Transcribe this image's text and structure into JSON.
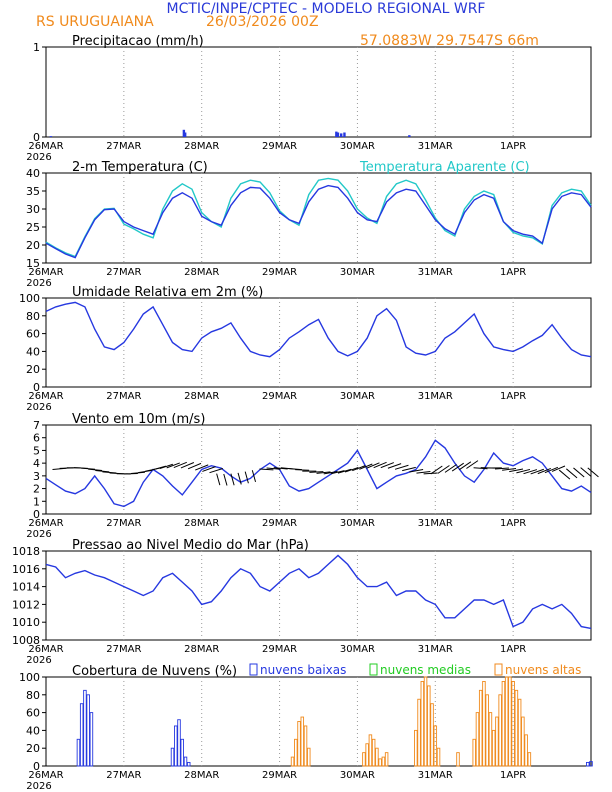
{
  "header": {
    "title": "MCTIC/INPE/CPTEC - MODELO REGIONAL WRF",
    "station": "RS URUGUAIANA",
    "run": "26/03/2026 00Z",
    "coords": "57.0883W 29.7547S 66m"
  },
  "colors": {
    "title": "#2a3ad8",
    "orange": "#f08a1c",
    "cyan": "#22c8c8",
    "blue": "#2638e0",
    "green": "#22cc22",
    "grid": "#9a9a9a"
  },
  "x_axis": {
    "ticks": [
      {
        "t": 0,
        "label": "26MAR",
        "year": "2026"
      },
      {
        "t": 24,
        "label": "27MAR"
      },
      {
        "t": 48,
        "label": "28MAR"
      },
      {
        "t": 72,
        "label": "29MAR"
      },
      {
        "t": 96,
        "label": "30MAR"
      },
      {
        "t": 120,
        "label": "31MAR"
      },
      {
        "t": 144,
        "label": "1APR"
      }
    ],
    "range": [
      0,
      168
    ]
  },
  "chart_data": [
    {
      "id": "precip",
      "type": "bar",
      "title": "Precipitacao (mm/h)",
      "ylim": [
        0,
        1
      ],
      "yticks": [
        0,
        1
      ],
      "x": [
        1.5,
        42.5,
        42.9,
        89.5,
        90.0,
        91.0,
        92.0,
        112.0
      ],
      "values": [
        0.01,
        0.08,
        0.05,
        0.06,
        0.05,
        0.04,
        0.05,
        0.02
      ]
    },
    {
      "id": "temp",
      "type": "line",
      "title": "2-m Temperatura (C)",
      "legend": "Temperatura Aparente (C)",
      "ylim": [
        15,
        40
      ],
      "yticks": [
        15,
        20,
        25,
        30,
        35,
        40
      ],
      "x": [
        0,
        3,
        6,
        9,
        12,
        15,
        18,
        21,
        24,
        27,
        30,
        33,
        36,
        39,
        42,
        45,
        48,
        51,
        54,
        57,
        60,
        63,
        66,
        69,
        72,
        75,
        78,
        81,
        84,
        87,
        90,
        93,
        96,
        99,
        102,
        105,
        108,
        111,
        114,
        117,
        120,
        123,
        126,
        129,
        132,
        135,
        138,
        141,
        144,
        147,
        150,
        153,
        156,
        159,
        162,
        165,
        168
      ],
      "series": [
        {
          "name": "2-m Temperatura (C)",
          "color": "#2638e0",
          "values": [
            20.5,
            19.0,
            17.5,
            16.5,
            22.0,
            27.0,
            29.8,
            30.0,
            26.5,
            25.0,
            24.0,
            23.0,
            29.0,
            33.0,
            34.5,
            33.0,
            28.0,
            26.5,
            25.5,
            31.0,
            34.5,
            36.0,
            35.8,
            33.0,
            29.0,
            27.0,
            26.0,
            32.0,
            35.5,
            36.5,
            36.0,
            33.0,
            29.0,
            27.0,
            26.5,
            32.0,
            34.5,
            35.5,
            35.0,
            31.0,
            27.0,
            24.5,
            23.0,
            29.0,
            32.5,
            34.0,
            33.0,
            26.5,
            24.0,
            23.0,
            22.5,
            20.5,
            30.0,
            33.5,
            34.5,
            34.0,
            30.5
          ]
        },
        {
          "name": "Temperatura Aparente (C)",
          "color": "#22c8c8",
          "values": [
            20.8,
            19.2,
            17.8,
            16.8,
            22.3,
            27.3,
            30.0,
            30.2,
            25.8,
            24.5,
            23.0,
            22.0,
            30.0,
            35.0,
            37.0,
            35.5,
            29.0,
            26.5,
            25.0,
            33.0,
            37.0,
            38.0,
            37.5,
            34.5,
            29.5,
            27.0,
            25.5,
            34.0,
            38.0,
            38.5,
            38.0,
            35.0,
            30.0,
            27.5,
            26.0,
            33.5,
            37.0,
            38.0,
            37.0,
            32.5,
            27.5,
            24.0,
            22.5,
            30.0,
            33.5,
            35.0,
            34.0,
            26.5,
            23.5,
            22.5,
            22.0,
            20.3,
            31.0,
            34.5,
            35.5,
            35.0,
            31.0
          ]
        }
      ]
    },
    {
      "id": "rh",
      "type": "line",
      "title": "Umidade Relativa em 2m (%)",
      "ylim": [
        0,
        100
      ],
      "yticks": [
        0,
        20,
        40,
        60,
        80,
        100
      ],
      "x": [
        0,
        3,
        6,
        9,
        12,
        15,
        18,
        21,
        24,
        27,
        30,
        33,
        36,
        39,
        42,
        45,
        48,
        51,
        54,
        57,
        60,
        63,
        66,
        69,
        72,
        75,
        78,
        81,
        84,
        87,
        90,
        93,
        96,
        99,
        102,
        105,
        108,
        111,
        114,
        117,
        120,
        123,
        126,
        129,
        132,
        135,
        138,
        141,
        144,
        147,
        150,
        153,
        156,
        159,
        162,
        165,
        168
      ],
      "series": [
        {
          "name": "Umidade Relativa",
          "color": "#2638e0",
          "values": [
            85,
            90,
            93,
            95,
            90,
            65,
            45,
            42,
            50,
            65,
            82,
            90,
            70,
            50,
            42,
            40,
            55,
            62,
            66,
            72,
            55,
            40,
            36,
            34,
            42,
            55,
            62,
            70,
            76,
            55,
            40,
            35,
            40,
            55,
            80,
            88,
            75,
            45,
            38,
            36,
            40,
            55,
            62,
            72,
            82,
            60,
            45,
            42,
            40,
            45,
            52,
            58,
            70,
            55,
            42,
            36,
            34
          ]
        }
      ]
    },
    {
      "id": "wind",
      "type": "line",
      "title": "Vento em 10m (m/s)",
      "ylim": [
        0,
        7
      ],
      "yticks": [
        0,
        1,
        2,
        3,
        4,
        5,
        6,
        7
      ],
      "x": [
        0,
        3,
        6,
        9,
        12,
        15,
        18,
        21,
        24,
        27,
        30,
        33,
        36,
        39,
        42,
        45,
        48,
        51,
        54,
        57,
        60,
        63,
        66,
        69,
        72,
        75,
        78,
        81,
        84,
        87,
        90,
        93,
        96,
        99,
        102,
        105,
        108,
        111,
        114,
        117,
        120,
        123,
        126,
        129,
        132,
        135,
        138,
        141,
        144,
        147,
        150,
        153,
        156,
        159,
        162,
        165,
        168
      ],
      "series": [
        {
          "name": "Vento 10m",
          "color": "#2638e0",
          "values": [
            2.8,
            2.3,
            1.8,
            1.6,
            2.0,
            3.0,
            2.0,
            0.8,
            0.6,
            1.0,
            2.5,
            3.5,
            3.0,
            2.2,
            1.5,
            2.5,
            3.5,
            3.8,
            3.6,
            3.0,
            2.5,
            2.8,
            3.5,
            4.0,
            3.5,
            2.2,
            1.8,
            2.0,
            2.5,
            3.0,
            3.5,
            4.0,
            5.0,
            3.5,
            2.0,
            2.5,
            3.0,
            3.2,
            3.5,
            4.5,
            5.8,
            5.2,
            4.0,
            3.0,
            2.5,
            3.5,
            4.8,
            4.0,
            3.8,
            4.2,
            4.5,
            4.0,
            3.0,
            2.0,
            1.8,
            2.2,
            1.7
          ]
        }
      ]
    },
    {
      "id": "slp",
      "type": "line",
      "title": "Pressao ao Nivel Medio do Mar (hPa)",
      "ylim": [
        1008,
        1018
      ],
      "yticks": [
        1008,
        1010,
        1012,
        1014,
        1016,
        1018
      ],
      "x": [
        0,
        3,
        6,
        9,
        12,
        15,
        18,
        21,
        24,
        27,
        30,
        33,
        36,
        39,
        42,
        45,
        48,
        51,
        54,
        57,
        60,
        63,
        66,
        69,
        72,
        75,
        78,
        81,
        84,
        87,
        90,
        93,
        96,
        99,
        102,
        105,
        108,
        111,
        114,
        117,
        120,
        123,
        126,
        129,
        132,
        135,
        138,
        141,
        144,
        147,
        150,
        153,
        156,
        159,
        162,
        165,
        168
      ],
      "series": [
        {
          "name": "PNMM",
          "color": "#2638e0",
          "values": [
            1016.5,
            1016.2,
            1015.0,
            1015.5,
            1015.8,
            1015.3,
            1015.0,
            1014.5,
            1014.0,
            1013.5,
            1013.0,
            1013.5,
            1015.0,
            1015.5,
            1014.5,
            1013.5,
            1012.0,
            1012.3,
            1013.5,
            1015.0,
            1016.0,
            1015.5,
            1014.0,
            1013.5,
            1014.5,
            1015.5,
            1016.0,
            1015.0,
            1015.5,
            1016.5,
            1017.5,
            1016.5,
            1015.0,
            1014.0,
            1014.0,
            1014.5,
            1013.0,
            1013.5,
            1013.5,
            1012.5,
            1012.0,
            1010.5,
            1010.5,
            1011.5,
            1012.5,
            1012.5,
            1012.0,
            1012.5,
            1009.5,
            1010.0,
            1011.5,
            1012.0,
            1011.5,
            1012.0,
            1011.0,
            1009.5,
            1009.3
          ]
        }
      ]
    },
    {
      "id": "clouds",
      "type": "bar",
      "title": "Cobertura de Nuvens (%)",
      "ylim": [
        0,
        100
      ],
      "yticks": [
        0,
        20,
        40,
        60,
        80,
        100
      ],
      "legend": [
        "nuvens baixas",
        "nuvens medias",
        "nuvens altas"
      ],
      "series": [
        {
          "name": "nuvens baixas",
          "color": "#2638e0",
          "x": [
            10,
            11,
            12,
            13,
            14,
            39,
            40,
            41,
            42,
            43,
            44,
            167,
            168
          ],
          "values": [
            30,
            70,
            85,
            80,
            60,
            20,
            45,
            52,
            30,
            10,
            4,
            4,
            5
          ]
        },
        {
          "name": "nuvens medias",
          "color": "#22cc22",
          "x": [],
          "values": []
        },
        {
          "name": "nuvens altas",
          "color": "#f08a1c",
          "x": [
            76,
            77,
            78,
            79,
            80,
            81,
            98,
            99,
            100,
            101,
            102,
            103,
            104,
            105,
            114,
            115,
            116,
            117,
            118,
            119,
            120,
            121,
            127,
            132,
            133,
            134,
            135,
            136,
            137,
            138,
            139,
            140,
            141,
            142,
            143,
            144,
            145,
            146,
            147,
            148,
            149
          ],
          "values": [
            10,
            30,
            50,
            55,
            45,
            20,
            15,
            25,
            35,
            30,
            20,
            8,
            10,
            15,
            40,
            75,
            95,
            100,
            90,
            70,
            45,
            20,
            15,
            30,
            60,
            85,
            95,
            80,
            60,
            40,
            55,
            80,
            95,
            100,
            100,
            95,
            85,
            75,
            55,
            35,
            15
          ]
        }
      ]
    }
  ]
}
